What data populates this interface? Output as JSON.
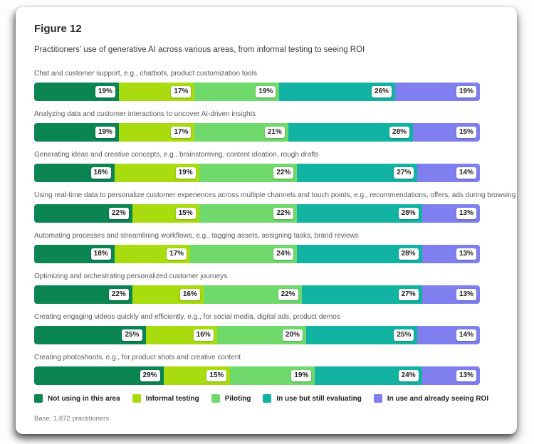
{
  "figure": {
    "label": "Figure 12",
    "subtitle": "Practitioners’ use of generative AI across various areas, from informal testing to seeing ROI",
    "base_note": "Base: 1,872 practitioners"
  },
  "chart_data": {
    "type": "bar",
    "stacked": true,
    "orientation": "horizontal",
    "unit": "%",
    "xlim": [
      0,
      100
    ],
    "grid": false,
    "legend_position": "bottom",
    "value_labels": "white pill at right end of each segment",
    "categories": [
      "Chat and customer support, e.g., chatbots, product customization tools",
      "Analyzing data and customer interactions to uncover AI-driven insights",
      "Generating ideas and creative concepts, e.g., brainstorming, content ideation, rough drafts",
      "Using real-time data to personalize customer experiences across multiple channels and touch points, e.g., recommendations, offers, ads during browsing",
      "Automating processes and streamlining workflows, e.g., tagging assets, assigning tasks, brand reviews",
      "Optimizing and orchestrating personalized customer journeys",
      "Creating engaging videos quickly and efficiently, e.g., for social media, digital ads, product demos",
      "Creating photoshoots, e.g., for product shots and creative content"
    ],
    "series": [
      {
        "name": "Not using in this area",
        "color": "#0B8552",
        "values": [
          19,
          19,
          18,
          22,
          18,
          22,
          25,
          29
        ]
      },
      {
        "name": "Informal testing",
        "color": "#A9DC0F",
        "values": [
          17,
          17,
          19,
          15,
          17,
          16,
          16,
          15
        ]
      },
      {
        "name": "Piloting",
        "color": "#6FD96C",
        "values": [
          19,
          21,
          22,
          22,
          24,
          22,
          20,
          19
        ]
      },
      {
        "name": "In use but still evaluating",
        "color": "#12B3A2",
        "values": [
          26,
          28,
          27,
          28,
          28,
          27,
          25,
          24
        ]
      },
      {
        "name": "In use and already seeing ROI",
        "color": "#7F7FF0",
        "values": [
          19,
          15,
          14,
          13,
          13,
          13,
          14,
          13
        ]
      }
    ]
  }
}
